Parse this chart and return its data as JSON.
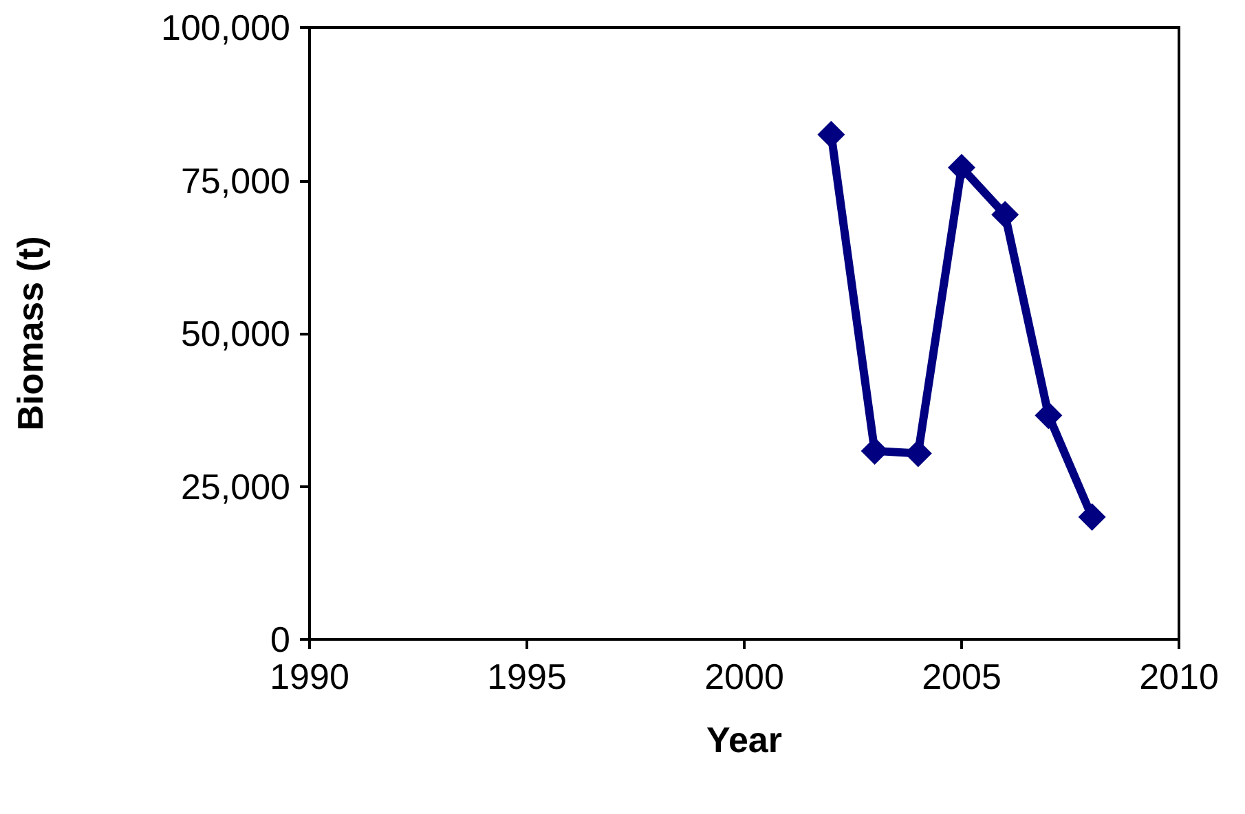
{
  "chart_data": {
    "type": "line",
    "xlabel": "Year",
    "ylabel": "Biomass (t)",
    "x": [
      2002,
      2003,
      2004,
      2005,
      2006,
      2007,
      2008
    ],
    "series": [
      {
        "color": "#000080",
        "values": [
          82500,
          30800,
          30400,
          77100,
          69400,
          36600,
          20000
        ]
      }
    ],
    "xlim": [
      1990,
      2010
    ],
    "xticks": [
      1990,
      1995,
      2000,
      2005,
      2010
    ],
    "ylim": [
      0,
      100000
    ],
    "yticks": [
      0,
      {
        "value": 25000,
        "label": "25,000"
      },
      {
        "value": 50000,
        "label": "50,000"
      },
      {
        "value": 75000,
        "label": "75,000"
      },
      {
        "value": 100000,
        "label": "100,000"
      }
    ],
    "grid": false,
    "marker": "diamond",
    "line_style": "solid"
  }
}
